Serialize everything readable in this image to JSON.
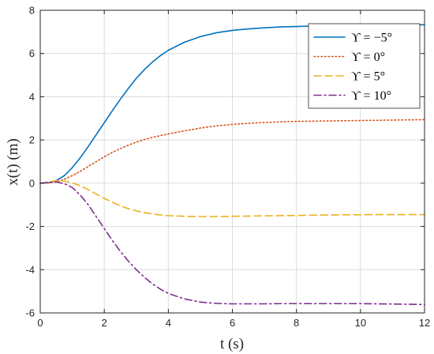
{
  "chart_data": {
    "type": "line",
    "title": "",
    "xlabel": "t (s)",
    "ylabel": "x(t) (m)",
    "xlim": [
      0,
      12
    ],
    "ylim": [
      -6,
      8
    ],
    "xticks": [
      0,
      2,
      4,
      6,
      8,
      10,
      12
    ],
    "yticks": [
      -6,
      -4,
      -2,
      0,
      2,
      4,
      6,
      8
    ],
    "grid": true,
    "legend_position": "top-right",
    "x": [
      0,
      0.25,
      0.5,
      0.75,
      1,
      1.25,
      1.5,
      1.75,
      2,
      2.25,
      2.5,
      2.75,
      3,
      3.25,
      3.5,
      3.75,
      4,
      4.5,
      5,
      5.5,
      6,
      6.5,
      7,
      7.5,
      8,
      8.5,
      9,
      9.5,
      10,
      10.5,
      11,
      11.5,
      12
    ],
    "series": [
      {
        "name": "ϒ = −5°",
        "color": "#0072BD",
        "dash": "solid",
        "values": [
          0,
          0.02,
          0.12,
          0.35,
          0.72,
          1.18,
          1.7,
          2.25,
          2.8,
          3.35,
          3.88,
          4.38,
          4.85,
          5.25,
          5.6,
          5.9,
          6.15,
          6.52,
          6.78,
          6.96,
          7.07,
          7.14,
          7.19,
          7.23,
          7.25,
          7.27,
          7.28,
          7.29,
          7.3,
          7.31,
          7.31,
          7.32,
          7.33
        ]
      },
      {
        "name": "ϒ = 0°",
        "color": "#D95319",
        "dash": "dotted",
        "values": [
          0,
          0.01,
          0.06,
          0.18,
          0.35,
          0.55,
          0.78,
          1.0,
          1.22,
          1.43,
          1.6,
          1.76,
          1.9,
          2.02,
          2.12,
          2.2,
          2.28,
          2.42,
          2.55,
          2.65,
          2.72,
          2.77,
          2.81,
          2.84,
          2.86,
          2.87,
          2.88,
          2.89,
          2.9,
          2.91,
          2.92,
          2.93,
          2.94
        ]
      },
      {
        "name": "ϒ = 5°",
        "color": "#EDB120",
        "dash": "dashed",
        "values": [
          0,
          0.05,
          0.12,
          0.1,
          0.02,
          -0.12,
          -0.3,
          -0.5,
          -0.7,
          -0.88,
          -1.04,
          -1.18,
          -1.28,
          -1.36,
          -1.42,
          -1.47,
          -1.5,
          -1.53,
          -1.54,
          -1.54,
          -1.53,
          -1.52,
          -1.51,
          -1.5,
          -1.49,
          -1.48,
          -1.47,
          -1.46,
          -1.46,
          -1.45,
          -1.45,
          -1.45,
          -1.45
        ]
      },
      {
        "name": "ϒ = 10°",
        "color": "#7E2F8E",
        "dash": "dashdot",
        "values": [
          0,
          0.04,
          0.06,
          -0.02,
          -0.2,
          -0.55,
          -1.0,
          -1.55,
          -2.1,
          -2.65,
          -3.15,
          -3.6,
          -4.0,
          -4.35,
          -4.65,
          -4.9,
          -5.1,
          -5.35,
          -5.5,
          -5.56,
          -5.58,
          -5.58,
          -5.58,
          -5.57,
          -5.57,
          -5.57,
          -5.57,
          -5.57,
          -5.57,
          -5.58,
          -5.59,
          -5.6,
          -5.61
        ]
      }
    ]
  }
}
